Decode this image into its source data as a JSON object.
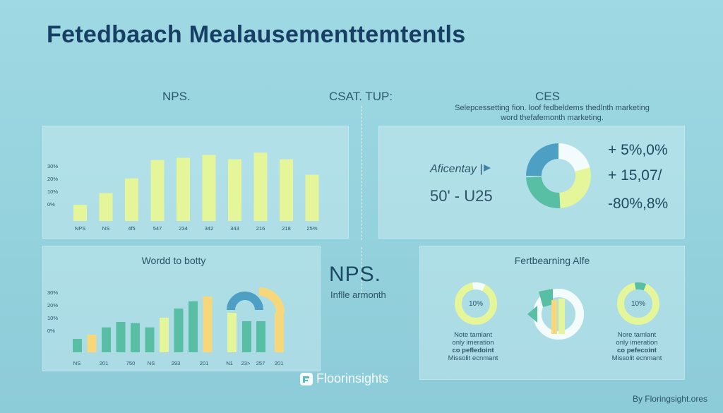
{
  "title": "Fetedbaach Mealausementtemtentls",
  "sections": {
    "nps_top": "NPS.",
    "csat_top": "CSAT. TUP:",
    "ces_top": "CES",
    "ces_desc_1": "Selepcessetting fion. loof fedbeldems thedlnth marketing",
    "ces_desc_2": "word thefafemonth marketing."
  },
  "colors": {
    "lime": "#e4f59a",
    "teal": "#58bea4",
    "blue": "#4e9fc4",
    "yellow": "#f6d87a",
    "white": "#f4fbfb"
  },
  "chart_data": [
    {
      "type": "bar",
      "name": "nps-bar-chart",
      "y_ticks": [
        "30%",
        "20%",
        "10%",
        "0%"
      ],
      "categories": [
        "NPS",
        "NS",
        "4f5",
        "547",
        "234",
        "342",
        "343",
        "216",
        "218",
        "25%"
      ],
      "values": [
        22,
        38,
        58,
        83,
        86,
        90,
        84,
        93,
        84,
        63
      ],
      "ylim": [
        0,
        100
      ]
    },
    {
      "type": "bar",
      "name": "world-to-botty-chart",
      "title": "Wordd to botty",
      "y_ticks": [
        "30%",
        "20%",
        "10%",
        "0%"
      ],
      "x_labels": [
        "NS",
        "201",
        "750",
        "NS",
        "293",
        "201",
        "N1",
        "23>",
        "257",
        "201"
      ],
      "bars": [
        {
          "v": 22,
          "c": "teal"
        },
        {
          "v": 29,
          "c": "yellow"
        },
        {
          "v": 41,
          "c": "teal"
        },
        {
          "v": 50,
          "c": "teal"
        },
        {
          "v": 48,
          "c": "teal"
        },
        {
          "v": 41,
          "c": "teal"
        },
        {
          "v": 57,
          "c": "lime"
        },
        {
          "v": 72,
          "c": "teal"
        },
        {
          "v": 84,
          "c": "teal"
        },
        {
          "v": 92,
          "c": "yellow"
        }
      ]
    }
  ],
  "ces": {
    "label": "Aficentay |",
    "value": "50' - U25",
    "stats": [
      "+ 5%,0%",
      "+ 15,07/",
      "-80%,8%"
    ]
  },
  "middle": {
    "big": "NPS.",
    "sub": "Inflle armonth"
  },
  "bottom_right": {
    "title": "Fertbearning Alfe",
    "left_pct": "10%",
    "right_pct": "10%",
    "left_note": [
      "Note tamlant",
      "only imeration",
      "co pefledoint",
      "Missolit ecnmant"
    ],
    "right_note": [
      "Nore tamlant",
      "only imeration",
      "co pefecoint",
      "Missolit ecnmant"
    ]
  },
  "brand": "Floorinsights",
  "credit": "By Floringsight.ores"
}
